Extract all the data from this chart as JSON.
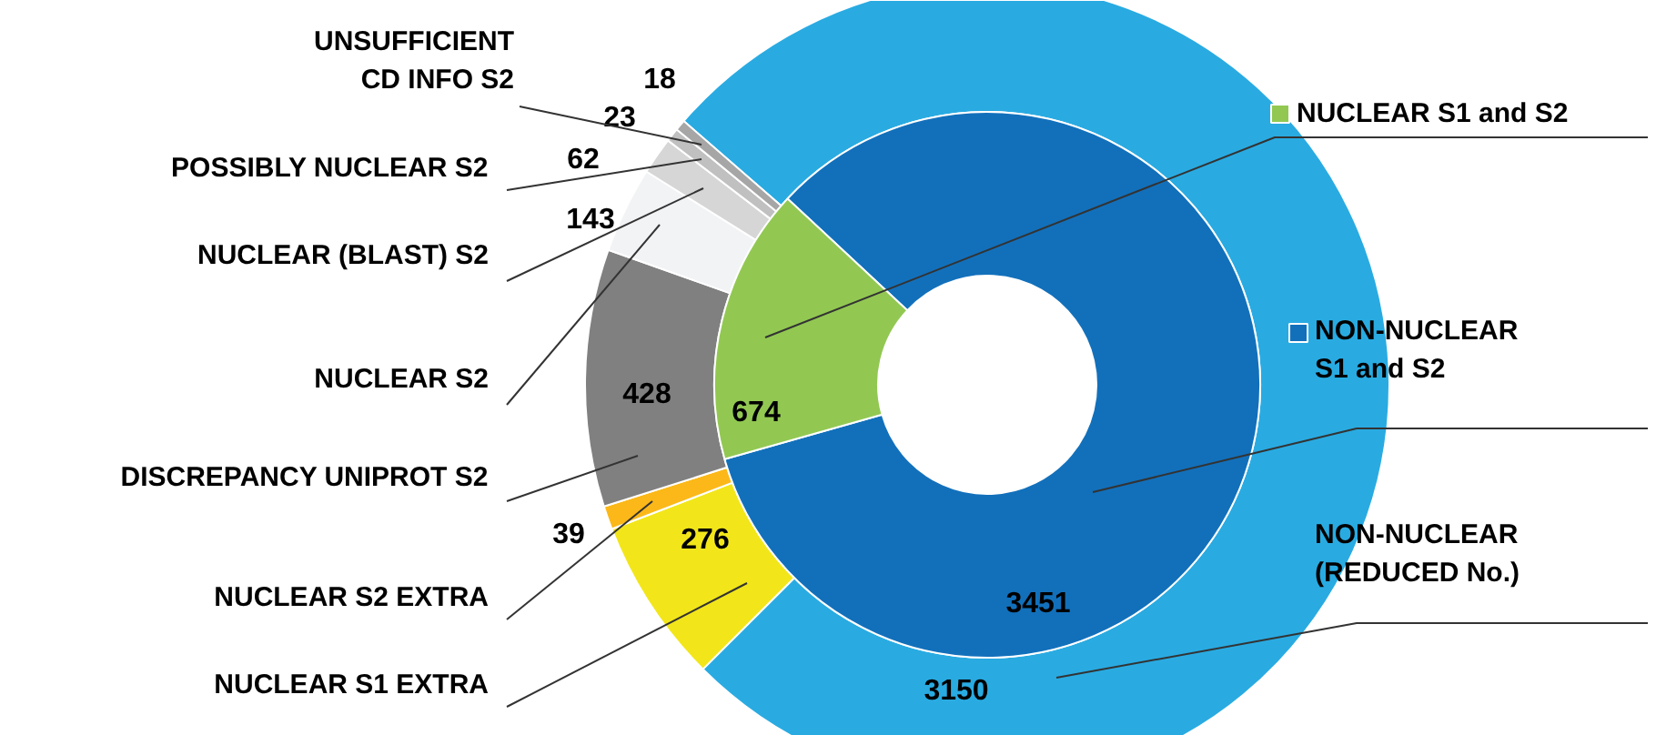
{
  "chart_data": {
    "type": "donut",
    "data_labels": true,
    "legend": "right",
    "categories": [
      "NON-NUCLEAR\n(REDUCED No.)",
      "NUCLEAR S1 EXTRA",
      "NUCLEAR S2 EXTRA",
      "DISCREPANCY UNIPROT S2",
      "NUCLEAR S2",
      "NUCLEAR (BLAST) S2",
      "POSSIBLY NUCLEAR S2",
      "UNSUFFICIENT\nCD INFO S2",
      "NON-NUCLEAR\nS1 and S2",
      "NUCLEAR S1 and  S2"
    ],
    "colors": [
      "#29abe2",
      "#f2e61a",
      "#fbb818",
      "#808080",
      "#f2f3f5",
      "#d6d6d6",
      "#c0c0c0",
      "#a6a6a6",
      "#1270bb",
      "#92c852"
    ],
    "series": [
      {
        "values": [
          3150,
          276,
          39,
          428,
          143,
          62,
          23,
          18,
          null,
          null
        ]
      },
      {
        "values": [
          null,
          null,
          null,
          null,
          null,
          null,
          null,
          null,
          3451,
          674
        ]
      }
    ]
  }
}
